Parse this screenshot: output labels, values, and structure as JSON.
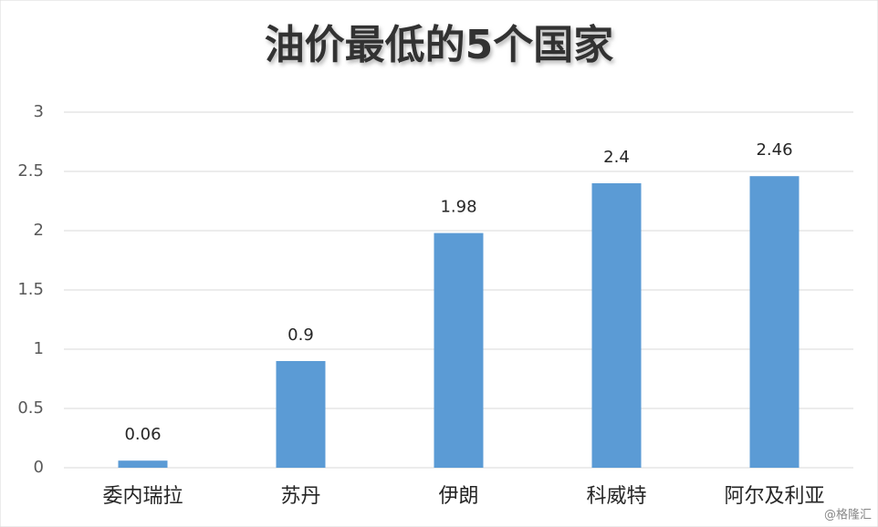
{
  "chart_data": {
    "type": "bar",
    "title": "油价最低的5个国家",
    "categories": [
      "委内瑞拉",
      "苏丹",
      "伊朗",
      "科威特",
      "阿尔及利亚"
    ],
    "values": [
      0.06,
      0.9,
      1.98,
      2.4,
      2.46
    ],
    "color": "#5b9bd5",
    "ylim": [
      0,
      3
    ],
    "yticks": [
      0,
      0.5,
      1,
      1.5,
      2,
      2.5,
      3
    ],
    "grid": true,
    "watermark": "@格隆汇"
  }
}
